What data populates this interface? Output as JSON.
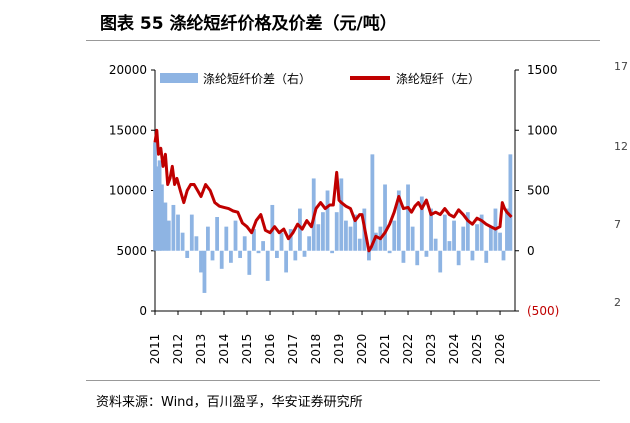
{
  "header": {
    "title": "图表 55 涤纶短纤价格及价差（元/吨）"
  },
  "footer": {
    "source": "资料来源：Wind，百川盈孚，华安证券研究所"
  },
  "colors": {
    "price_line": "#c00000",
    "spread_area": "#8eb4e3",
    "negative_tick": "#c00000"
  },
  "neighbor_chart": {
    "tick_labels": [
      "17",
      "12",
      "7",
      "2"
    ]
  },
  "chart_data": {
    "type": "line",
    "title": "图表 55 涤纶短纤价格及价差（元/吨）",
    "x_ticks": [
      "2011",
      "2012",
      "2013",
      "2014",
      "2015",
      "2016",
      "2017",
      "2018",
      "2019",
      "2020",
      "2021",
      "2022",
      "2023",
      "2024",
      "2025",
      "2026"
    ],
    "xlim": [
      2011.0,
      2026.65
    ],
    "left_axis": {
      "ylim": [
        0,
        20000
      ],
      "ticks": [
        "0",
        "5000",
        "10000",
        "15000",
        "20000"
      ]
    },
    "right_axis": {
      "ylim": [
        -500,
        1500
      ],
      "ticks": [
        "(500)",
        "0",
        "500",
        "1000",
        "1500"
      ]
    },
    "legend_position": "top",
    "series": [
      {
        "name": "涤纶短纤价差（右）",
        "type": "area",
        "axis": "right",
        "x": [
          2011.0,
          2011.1,
          2011.2,
          2011.3,
          2011.45,
          2011.6,
          2011.8,
          2012.0,
          2012.2,
          2012.4,
          2012.6,
          2012.8,
          2013.0,
          2013.15,
          2013.3,
          2013.5,
          2013.7,
          2013.9,
          2014.1,
          2014.3,
          2014.5,
          2014.7,
          2014.9,
          2015.1,
          2015.3,
          2015.5,
          2015.7,
          2015.9,
          2016.1,
          2016.3,
          2016.5,
          2016.7,
          2016.9,
          2017.1,
          2017.3,
          2017.5,
          2017.7,
          2017.9,
          2018.1,
          2018.3,
          2018.5,
          2018.7,
          2018.9,
          2019.1,
          2019.3,
          2019.5,
          2019.7,
          2019.9,
          2020.1,
          2020.3,
          2020.45,
          2020.6,
          2020.8,
          2021.0,
          2021.2,
          2021.4,
          2021.6,
          2021.8,
          2022.0,
          2022.2,
          2022.4,
          2022.6,
          2022.8,
          2023.0,
          2023.2,
          2023.4,
          2023.6,
          2023.8,
          2024.0,
          2024.2,
          2024.4,
          2024.6,
          2024.8,
          2025.0,
          2025.2,
          2025.4,
          2025.6,
          2025.8,
          2026.0,
          2026.15,
          2026.3,
          2026.45
        ],
        "values": [
          900,
          700,
          750,
          550,
          400,
          250,
          380,
          300,
          150,
          -60,
          300,
          120,
          -180,
          -350,
          200,
          -80,
          280,
          -150,
          200,
          -100,
          250,
          -60,
          120,
          -200,
          180,
          -20,
          80,
          -250,
          380,
          -60,
          150,
          -180,
          180,
          -80,
          350,
          -50,
          120,
          600,
          220,
          320,
          500,
          -20,
          320,
          600,
          250,
          200,
          300,
          100,
          350,
          -80,
          800,
          150,
          200,
          550,
          -20,
          250,
          500,
          -100,
          550,
          200,
          -120,
          450,
          -50,
          350,
          100,
          -180,
          300,
          80,
          250,
          -120,
          200,
          320,
          -80,
          220,
          300,
          -100,
          200,
          350,
          150,
          -80,
          350,
          800
        ]
      },
      {
        "name": "涤纶短纤（左）",
        "type": "line",
        "axis": "left",
        "x": [
          2011.0,
          2011.08,
          2011.15,
          2011.25,
          2011.35,
          2011.45,
          2011.55,
          2011.65,
          2011.75,
          2011.85,
          2011.95,
          2012.1,
          2012.25,
          2012.4,
          2012.55,
          2012.7,
          2012.85,
          2013.0,
          2013.2,
          2013.4,
          2013.6,
          2013.8,
          2014.0,
          2014.2,
          2014.4,
          2014.6,
          2014.8,
          2015.0,
          2015.2,
          2015.4,
          2015.6,
          2015.8,
          2016.0,
          2016.2,
          2016.4,
          2016.6,
          2016.8,
          2017.0,
          2017.2,
          2017.4,
          2017.6,
          2017.8,
          2018.0,
          2018.2,
          2018.4,
          2018.6,
          2018.75,
          2018.9,
          2019.0,
          2019.1,
          2019.3,
          2019.5,
          2019.7,
          2019.9,
          2020.0,
          2020.1,
          2020.2,
          2020.3,
          2020.4,
          2020.6,
          2020.8,
          2021.0,
          2021.2,
          2021.4,
          2021.6,
          2021.8,
          2022.0,
          2022.15,
          2022.3,
          2022.45,
          2022.6,
          2022.8,
          2023.0,
          2023.2,
          2023.4,
          2023.6,
          2023.8,
          2024.0,
          2024.2,
          2024.4,
          2024.6,
          2024.8,
          2025.0,
          2025.2,
          2025.4,
          2025.6,
          2025.8,
          2026.0,
          2026.1,
          2026.2,
          2026.3,
          2026.4,
          2026.5
        ],
        "values": [
          14000,
          15000,
          13000,
          13500,
          12000,
          13000,
          10500,
          11000,
          12000,
          10500,
          11000,
          10000,
          9000,
          10000,
          10500,
          10500,
          10000,
          9500,
          10500,
          10000,
          9000,
          8700,
          8600,
          8500,
          8300,
          8200,
          7300,
          7000,
          6500,
          7500,
          8000,
          6700,
          6500,
          7000,
          6500,
          6800,
          6000,
          6500,
          7200,
          6800,
          7500,
          7000,
          8500,
          9000,
          8500,
          8800,
          8800,
          11500,
          9200,
          9000,
          8700,
          8500,
          7500,
          8000,
          8000,
          7000,
          6000,
          5000,
          5300,
          6200,
          6000,
          6500,
          7200,
          8200,
          9500,
          8500,
          8600,
          8200,
          8700,
          9000,
          8500,
          9200,
          8000,
          8200,
          8000,
          8500,
          8000,
          7800,
          8400,
          8000,
          7500,
          7200,
          7700,
          7500,
          7200,
          7000,
          6800,
          7000,
          9000,
          8500,
          8200,
          8000,
          7800
        ]
      }
    ]
  }
}
